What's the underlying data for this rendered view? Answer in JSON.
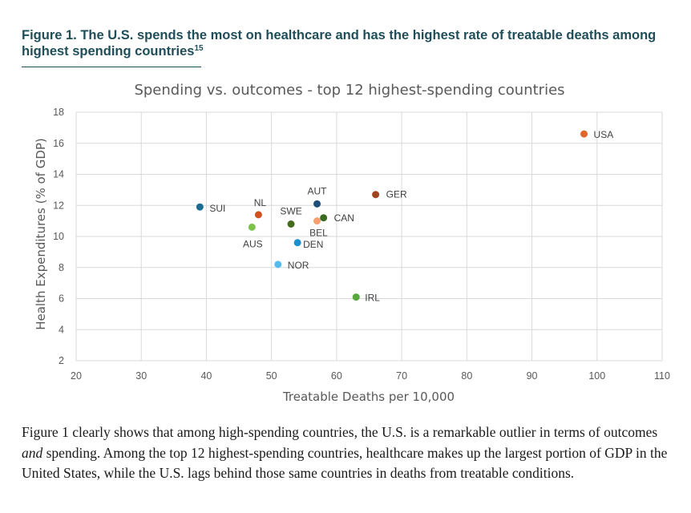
{
  "figure": {
    "title": "Figure 1. The U.S. spends the most on healthcare and has the highest rate of treatable deaths among highest spending countries",
    "footnote_ref": "15"
  },
  "chart_data": {
    "type": "scatter",
    "title": "Spending vs. outcomes - top 12 highest-spending countries",
    "xlabel": "Treatable Deaths per 10,000",
    "ylabel": "Health Expenditures (% of GDP)",
    "xlim": [
      20,
      110
    ],
    "ylim": [
      2,
      18
    ],
    "xticks": [
      20,
      30,
      40,
      50,
      60,
      70,
      80,
      90,
      100,
      110
    ],
    "yticks": [
      2,
      4,
      6,
      8,
      10,
      12,
      14,
      16,
      18
    ],
    "grid": true,
    "legend": "none",
    "points": [
      {
        "label": "USA",
        "x": 98,
        "y": 16.6,
        "color": "#e0662a"
      },
      {
        "label": "GER",
        "x": 66,
        "y": 12.7,
        "color": "#a0461e"
      },
      {
        "label": "AUT",
        "x": 57,
        "y": 12.1,
        "color": "#1f4e79"
      },
      {
        "label": "SUI",
        "x": 39,
        "y": 11.9,
        "color": "#1a6c96"
      },
      {
        "label": "NL",
        "x": 48,
        "y": 11.4,
        "color": "#d04f1c"
      },
      {
        "label": "CAN",
        "x": 58,
        "y": 11.2,
        "color": "#3a6b22"
      },
      {
        "label": "BEL",
        "x": 57,
        "y": 11.0,
        "color": "#f4a070"
      },
      {
        "label": "SWE",
        "x": 53,
        "y": 10.8,
        "color": "#466b1e"
      },
      {
        "label": "AUS",
        "x": 47,
        "y": 10.6,
        "color": "#7cc24a"
      },
      {
        "label": "DEN",
        "x": 54,
        "y": 9.6,
        "color": "#1b8fcf"
      },
      {
        "label": "NOR",
        "x": 51,
        "y": 8.2,
        "color": "#55bbea"
      },
      {
        "label": "IRL",
        "x": 63,
        "y": 6.1,
        "color": "#56a83a"
      }
    ]
  },
  "caption": {
    "part1": "Figure 1 clearly shows that among high-spending countries, the U.S. is a remarkable outlier in terms of outcomes ",
    "emphasis": "and",
    "part2": " spending. Among the top 12 highest-spending countries, healthcare makes up the largest portion of GDP in the United States, while the U.S. lags behind those same countries in deaths from treatable conditions."
  }
}
